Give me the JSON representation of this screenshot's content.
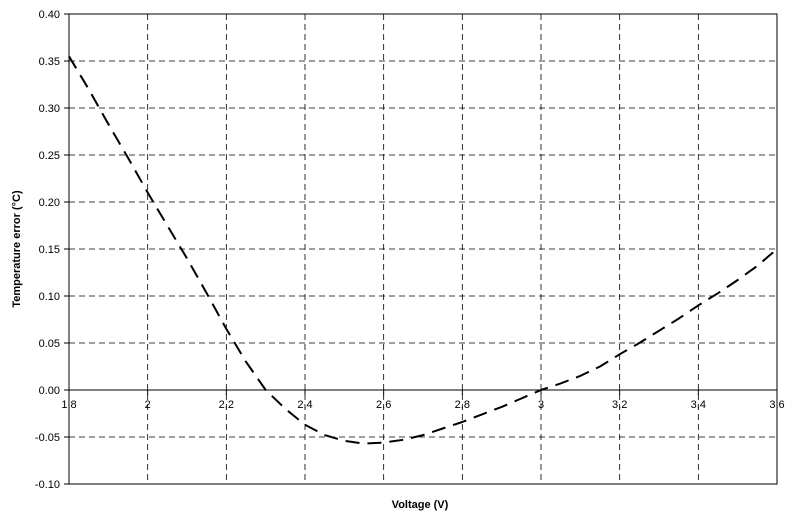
{
  "chart_data": {
    "type": "line",
    "title": "",
    "xlabel": "Voltage (V)",
    "ylabel": "Temperature error (°C)",
    "xlim": [
      1.8,
      3.6
    ],
    "ylim": [
      -0.1,
      0.4
    ],
    "grid": true,
    "legend": "none",
    "x_ticks": [
      1.8,
      2,
      2.2,
      2.4,
      2.6,
      2.8,
      3,
      3.2,
      3.4,
      3.6
    ],
    "x_tick_labels": [
      "1,8",
      "2",
      "2,2",
      "2,4",
      "2,6",
      "2,8",
      "3",
      "3,2",
      "3,4",
      "3,6"
    ],
    "y_ticks": [
      0.4,
      0.35,
      0.3,
      0.25,
      0.2,
      0.15,
      0.1,
      0.05,
      0.0,
      -0.05,
      -0.1
    ],
    "y_tick_labels": [
      "0.40",
      "0.35",
      "0.30",
      "0.25",
      "0.20",
      "0.15",
      "0.10",
      "0.05",
      "0.00",
      "-0.05",
      "-0.10"
    ],
    "series": [
      {
        "line_style": "dashed",
        "color": "#000000",
        "x": [
          1.8,
          1.85,
          1.9,
          1.95,
          2.0,
          2.05,
          2.1,
          2.15,
          2.2,
          2.25,
          2.3,
          2.35,
          2.4,
          2.45,
          2.5,
          2.55,
          2.6,
          2.65,
          2.7,
          2.75,
          2.8,
          2.85,
          2.9,
          2.95,
          3.0,
          3.05,
          3.1,
          3.15,
          3.2,
          3.25,
          3.3,
          3.35,
          3.4,
          3.45,
          3.5,
          3.55,
          3.6
        ],
        "y": [
          0.355,
          0.32,
          0.283,
          0.247,
          0.21,
          0.175,
          0.14,
          0.103,
          0.065,
          0.03,
          0.0,
          -0.02,
          -0.037,
          -0.048,
          -0.054,
          -0.057,
          -0.056,
          -0.053,
          -0.048,
          -0.041,
          -0.034,
          -0.026,
          -0.018,
          -0.009,
          0.0,
          0.007,
          0.015,
          0.025,
          0.038,
          0.05,
          0.063,
          0.076,
          0.09,
          0.103,
          0.117,
          0.132,
          0.15
        ]
      }
    ]
  }
}
